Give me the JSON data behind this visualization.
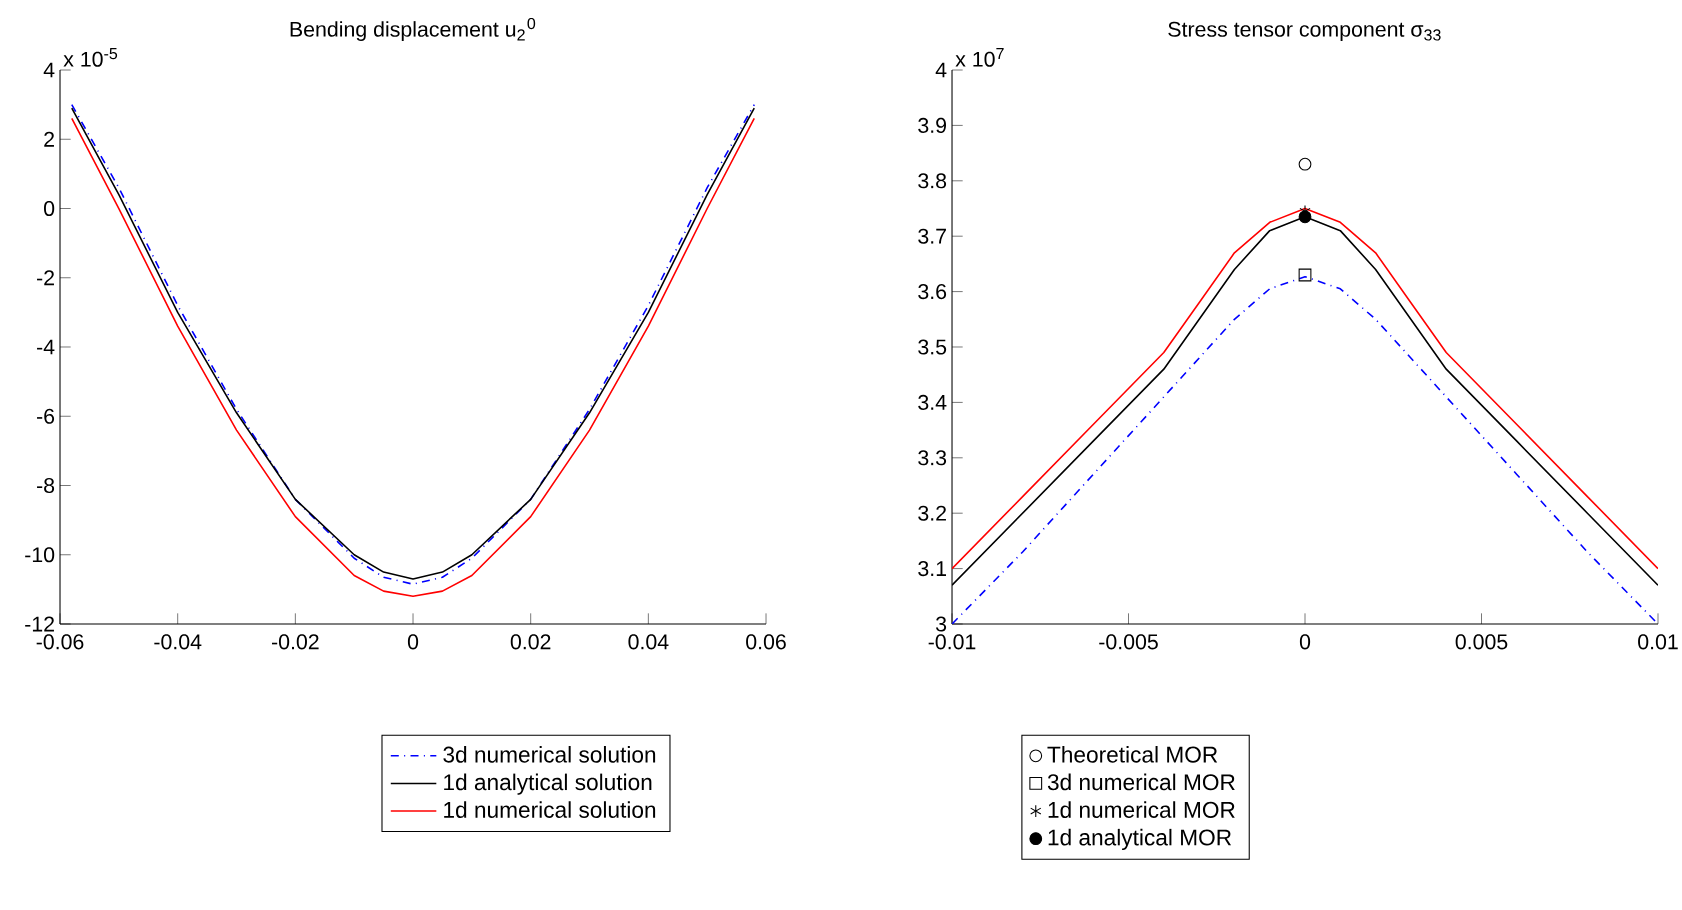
{
  "chart_data": [
    {
      "type": "line",
      "title": "Bending displacement u$_{2}$$^{0}$",
      "annotations": [
        "x 10$^{-5}$"
      ],
      "xlim": [
        -0.06,
        0.06
      ],
      "ylim": [
        -12,
        4
      ],
      "xticks": [
        -0.06,
        -0.04,
        -0.02,
        0,
        0.02,
        0.04,
        0.06
      ],
      "yticks": [
        -12,
        -10,
        -8,
        -6,
        -4,
        -2,
        0,
        2,
        4
      ],
      "legend": "bottom",
      "grid": false,
      "series": [
        {
          "name": "3d numerical solution",
          "color": "#0000ff",
          "line_style": "dashdot",
          "x": [
            -0.058,
            -0.05,
            -0.04,
            -0.03,
            -0.02,
            -0.01,
            -0.005,
            0,
            0.005,
            0.01,
            0.02,
            0.03,
            0.04,
            0.05,
            0.058
          ],
          "values": [
            3.0,
            0.6,
            -2.8,
            -5.8,
            -8.4,
            -10.1,
            -10.65,
            -10.85,
            -10.65,
            -10.1,
            -8.4,
            -5.8,
            -2.8,
            0.6,
            3.0
          ]
        },
        {
          "name": "1d analytical solution",
          "color": "#000000",
          "line_style": "solid",
          "x": [
            -0.058,
            -0.05,
            -0.04,
            -0.03,
            -0.02,
            -0.01,
            -0.005,
            0,
            0.005,
            0.01,
            0.02,
            0.03,
            0.04,
            0.05,
            0.058
          ],
          "values": [
            2.9,
            0.4,
            -3.0,
            -5.9,
            -8.4,
            -10.0,
            -10.5,
            -10.7,
            -10.5,
            -10.0,
            -8.4,
            -5.9,
            -3.0,
            0.4,
            2.9
          ]
        },
        {
          "name": "1d numerical solution",
          "color": "#ff0000",
          "line_style": "solid",
          "x": [
            -0.058,
            -0.05,
            -0.04,
            -0.03,
            -0.02,
            -0.01,
            -0.005,
            0,
            0.005,
            0.01,
            0.02,
            0.03,
            0.04,
            0.05,
            0.058
          ],
          "values": [
            2.6,
            0.0,
            -3.4,
            -6.4,
            -8.9,
            -10.6,
            -11.05,
            -11.2,
            -11.05,
            -10.6,
            -8.9,
            -6.4,
            -3.4,
            0.0,
            2.6
          ]
        }
      ]
    },
    {
      "type": "line",
      "title": "Stress tensor component σ$_{33}$",
      "annotations": [
        "x 10$^{7}$"
      ],
      "xlim": [
        -0.01,
        0.01
      ],
      "ylim": [
        3,
        4
      ],
      "xticks": [
        -0.01,
        -0.005,
        0,
        0.005,
        0.01
      ],
      "yticks": [
        3,
        3.1,
        3.2,
        3.3,
        3.4,
        3.5,
        3.6,
        3.7,
        3.8,
        3.9,
        4
      ],
      "legend": "bottom",
      "grid": false,
      "series": [
        {
          "color": "#0000ff",
          "line_style": "dashdot",
          "x": [
            -0.01,
            -0.008,
            -0.006,
            -0.004,
            -0.003,
            -0.002,
            -0.001,
            0,
            0.001,
            0.002,
            0.003,
            0.004,
            0.006,
            0.008,
            0.01
          ],
          "values": [
            3.0,
            3.13,
            3.27,
            3.41,
            3.48,
            3.55,
            3.605,
            3.627,
            3.605,
            3.55,
            3.48,
            3.41,
            3.27,
            3.13,
            3.0
          ]
        },
        {
          "color": "#000000",
          "line_style": "solid",
          "x": [
            -0.01,
            -0.008,
            -0.006,
            -0.004,
            -0.003,
            -0.002,
            -0.001,
            0,
            0.001,
            0.002,
            0.003,
            0.004,
            0.006,
            0.008,
            0.01
          ],
          "values": [
            3.07,
            3.2,
            3.33,
            3.46,
            3.55,
            3.64,
            3.71,
            3.735,
            3.71,
            3.64,
            3.55,
            3.46,
            3.33,
            3.2,
            3.07
          ]
        },
        {
          "color": "#ff0000",
          "line_style": "solid",
          "x": [
            -0.01,
            -0.008,
            -0.006,
            -0.004,
            -0.003,
            -0.002,
            -0.001,
            0,
            0.001,
            0.002,
            0.003,
            0.004,
            0.006,
            0.008,
            0.01
          ],
          "values": [
            3.1,
            3.23,
            3.36,
            3.49,
            3.58,
            3.67,
            3.725,
            3.75,
            3.725,
            3.67,
            3.58,
            3.49,
            3.36,
            3.23,
            3.1
          ]
        },
        {
          "type": "scatter",
          "name": "Theoretical MOR",
          "color": "#000000",
          "marker": "circle",
          "x": [
            0
          ],
          "values": [
            3.83
          ]
        },
        {
          "type": "scatter",
          "name": "3d numerical MOR",
          "color": "#000000",
          "marker": "square",
          "x": [
            0
          ],
          "values": [
            3.63
          ]
        },
        {
          "type": "scatter",
          "name": "1d numerical MOR",
          "color": "#000000",
          "marker": "cross",
          "x": [
            0
          ],
          "values": [
            3.745
          ]
        },
        {
          "type": "scatter",
          "name": "1d analytical MOR",
          "color": "#000000",
          "marker": "dot",
          "x": [
            0
          ],
          "values": [
            3.735
          ]
        }
      ]
    }
  ]
}
